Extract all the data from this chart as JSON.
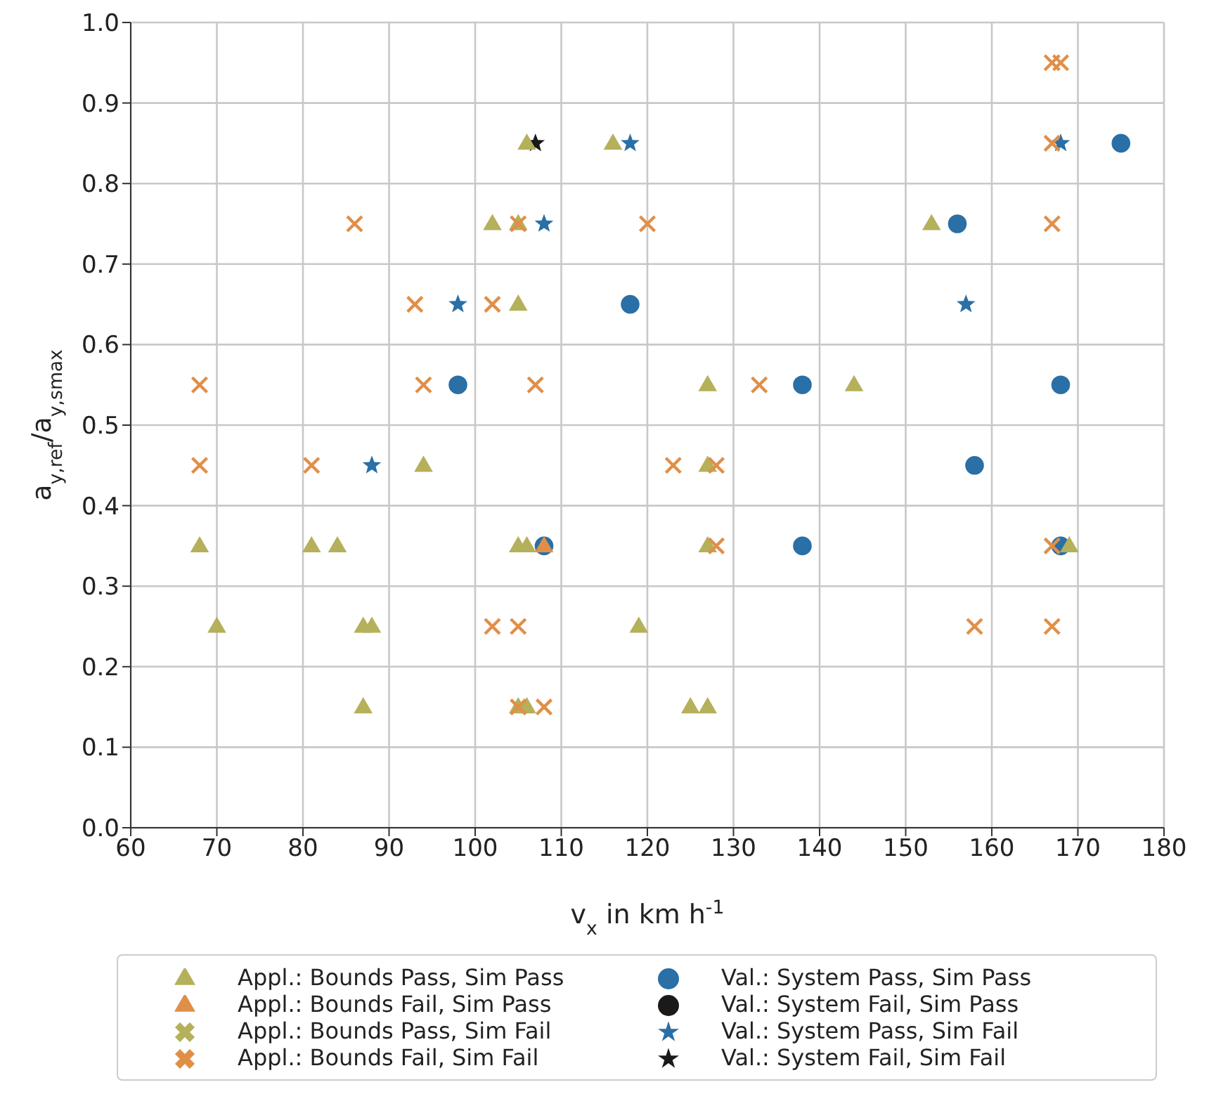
{
  "chart_data": {
    "type": "scatter",
    "xlabel": "v$_{x}$ in km h$^{-1}$",
    "ylabel": "a$_{y,ref}$/a$_{y,smax}$",
    "xlim": [
      60,
      180
    ],
    "xticks": [
      60,
      70,
      80,
      90,
      100,
      110,
      120,
      130,
      140,
      150,
      160,
      170,
      180
    ],
    "ylim": [
      0,
      1
    ],
    "yticks": [
      {
        "value": 0,
        "label": "0.0"
      },
      {
        "value": 0.1,
        "label": "0.1"
      },
      {
        "value": 0.2,
        "label": "0.2"
      },
      {
        "value": 0.3,
        "label": "0.3"
      },
      {
        "value": 0.4,
        "label": "0.4"
      },
      {
        "value": 0.5,
        "label": "0.5"
      },
      {
        "value": 0.6,
        "label": "0.6"
      },
      {
        "value": 0.7,
        "label": "0.7"
      },
      {
        "value": 0.8,
        "label": "0.8"
      },
      {
        "value": 0.9,
        "label": "0.9"
      },
      {
        "value": 1,
        "label": "1.0"
      }
    ],
    "grid": true,
    "legend": "bottom",
    "series": [
      {
        "name": "Appl.: Bounds Pass, Sim Pass",
        "color": "#b5b05a",
        "marker": "triangle",
        "x": [
          106,
          116,
          102,
          105,
          153,
          105,
          127,
          144,
          94,
          127,
          68,
          81,
          84,
          105,
          106,
          127,
          169,
          70,
          87,
          88,
          119,
          87,
          105,
          106,
          125,
          127
        ],
        "values": [
          0.85,
          0.85,
          0.75,
          0.75,
          0.75,
          0.65,
          0.55,
          0.55,
          0.45,
          0.45,
          0.35,
          0.35,
          0.35,
          0.35,
          0.35,
          0.35,
          0.35,
          0.25,
          0.25,
          0.25,
          0.25,
          0.15,
          0.15,
          0.15,
          0.15,
          0.15
        ]
      },
      {
        "name": "Appl.: Bounds Fail, Sim Pass",
        "color": "#e08f48",
        "marker": "triangle",
        "x": [
          108
        ],
        "values": [
          0.35
        ]
      },
      {
        "name": "Appl.: Bounds Pass, Sim Fail",
        "color": "#b5b05a",
        "marker": "cross"
      },
      {
        "name": "Appl.: Bounds Fail, Sim Fail",
        "color": "#e08f48",
        "marker": "cross",
        "x": [
          167,
          168,
          167,
          86,
          105,
          120,
          167,
          93,
          102,
          68,
          94,
          107,
          133,
          68,
          81,
          123,
          128,
          128,
          167,
          102,
          105,
          158,
          167,
          105,
          108
        ],
        "values": [
          0.95,
          0.95,
          0.85,
          0.75,
          0.75,
          0.75,
          0.75,
          0.65,
          0.65,
          0.55,
          0.55,
          0.55,
          0.55,
          0.45,
          0.45,
          0.45,
          0.45,
          0.35,
          0.35,
          0.25,
          0.25,
          0.25,
          0.25,
          0.15,
          0.15
        ]
      },
      {
        "name": "Val.: System Pass, Sim Pass",
        "color": "#2a6fa5",
        "marker": "circle",
        "x": [
          175,
          156,
          118,
          98,
          138,
          168,
          158,
          108,
          138,
          168
        ],
        "values": [
          0.85,
          0.75,
          0.65,
          0.55,
          0.55,
          0.55,
          0.45,
          0.35,
          0.35,
          0.35
        ]
      },
      {
        "name": "Val.: System Fail, Sim Pass",
        "color": "#1a1a1a",
        "marker": "circle"
      },
      {
        "name": "Val.: System Pass, Sim Fail",
        "color": "#2a6fa5",
        "marker": "star",
        "x": [
          118,
          168,
          108,
          98,
          157,
          88
        ],
        "values": [
          0.85,
          0.85,
          0.75,
          0.65,
          0.65,
          0.45
        ]
      },
      {
        "name": "Val.: System Fail, Sim Fail",
        "color": "#1a1a1a",
        "marker": "star",
        "x": [
          107
        ],
        "values": [
          0.85
        ]
      }
    ]
  }
}
